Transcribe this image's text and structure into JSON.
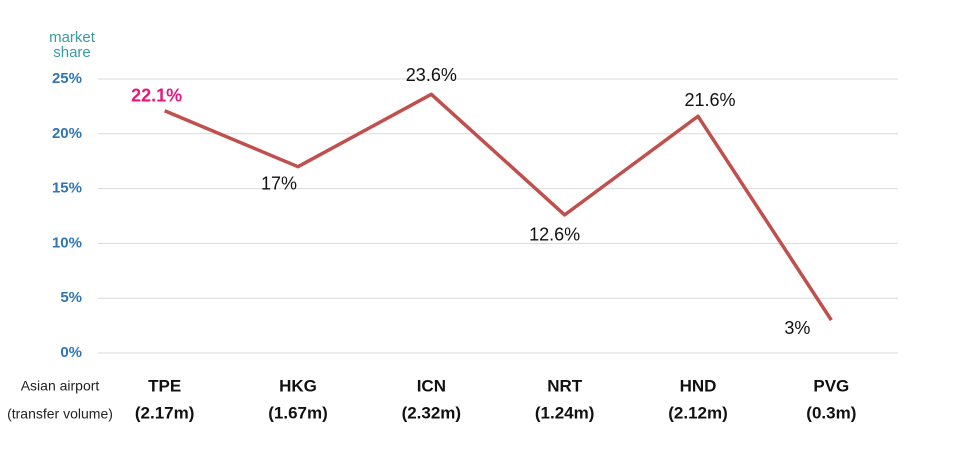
{
  "chart_data": {
    "type": "line",
    "ylabel": [
      "market",
      "share"
    ],
    "xlabel": "Asian airport",
    "xlabel_sub": "(transfer volume)",
    "categories": [
      "TPE",
      "HKG",
      "ICN",
      "NRT",
      "HND",
      "PVG"
    ],
    "category_sublabels": [
      "(2.17m)",
      "(1.67m)",
      "(2.32m)",
      "(1.24m)",
      "(2.12m)",
      "(0.3m)"
    ],
    "series": [
      {
        "name": "market share",
        "color": "#c0504d",
        "values": [
          22.1,
          17,
          23.6,
          12.6,
          21.6,
          3
        ],
        "value_labels": [
          "22.1%",
          "17%",
          "23.6%",
          "12.6%",
          "21.6%",
          "3%"
        ]
      }
    ],
    "highlight_index": 0,
    "highlight_color": "#e6177a",
    "ylim": [
      0,
      25
    ],
    "yticks": [
      {
        "value": 0,
        "label": "0%"
      },
      {
        "value": 5,
        "label": "5%"
      },
      {
        "value": 10,
        "label": "10%"
      },
      {
        "value": 15,
        "label": "15%"
      },
      {
        "value": 20,
        "label": "20%"
      },
      {
        "value": 25,
        "label": "25%"
      }
    ],
    "grid": true
  }
}
